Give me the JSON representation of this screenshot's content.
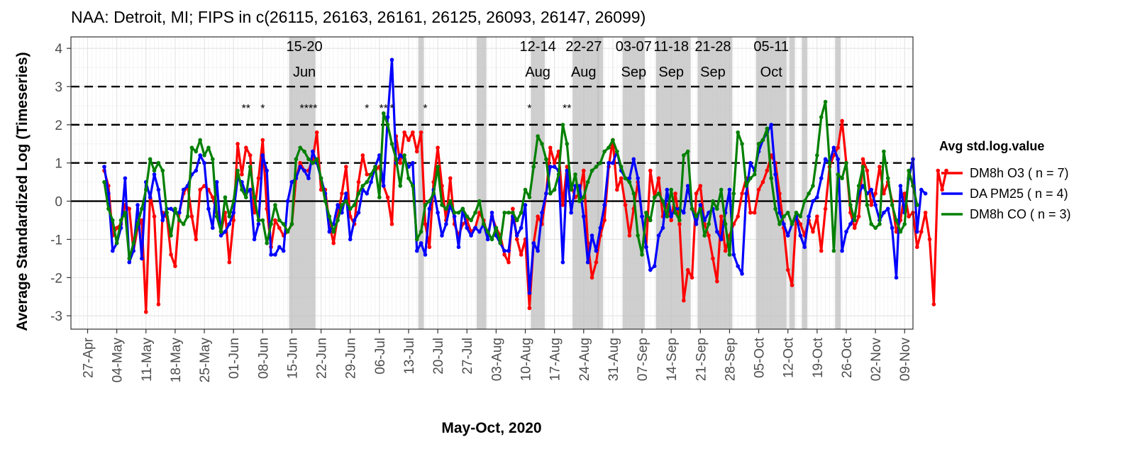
{
  "chart_data": {
    "type": "line",
    "title": "NAA: Detroit, MI; FIPS in c(26115, 26163, 26161, 26125, 26093, 26147, 26099)",
    "xlabel": "May-Oct, 2020",
    "ylabel": "Average Standardized Log (Timeseries)",
    "x_range": [
      "2020-04-23",
      "2020-11-11"
    ],
    "ylim": [
      -3.35,
      4.3
    ],
    "y_ticks": [
      -3,
      -2,
      -1,
      0,
      1,
      2,
      3,
      4
    ],
    "x_ticks": [
      {
        "date": "2020-04-27",
        "label": "27-Apr"
      },
      {
        "date": "2020-05-04",
        "label": "04-May"
      },
      {
        "date": "2020-05-11",
        "label": "11-May"
      },
      {
        "date": "2020-05-18",
        "label": "18-May"
      },
      {
        "date": "2020-05-25",
        "label": "25-May"
      },
      {
        "date": "2020-06-01",
        "label": "01-Jun"
      },
      {
        "date": "2020-06-08",
        "label": "08-Jun"
      },
      {
        "date": "2020-06-15",
        "label": "15-Jun"
      },
      {
        "date": "2020-06-22",
        "label": "22-Jun"
      },
      {
        "date": "2020-06-29",
        "label": "29-Jun"
      },
      {
        "date": "2020-07-06",
        "label": "06-Jul"
      },
      {
        "date": "2020-07-13",
        "label": "13-Jul"
      },
      {
        "date": "2020-07-20",
        "label": "20-Jul"
      },
      {
        "date": "2020-07-27",
        "label": "27-Jul"
      },
      {
        "date": "2020-08-03",
        "label": "03-Aug"
      },
      {
        "date": "2020-08-10",
        "label": "10-Aug"
      },
      {
        "date": "2020-08-17",
        "label": "17-Aug"
      },
      {
        "date": "2020-08-24",
        "label": "24-Aug"
      },
      {
        "date": "2020-08-31",
        "label": "31-Aug"
      },
      {
        "date": "2020-09-07",
        "label": "07-Sep"
      },
      {
        "date": "2020-09-14",
        "label": "14-Sep"
      },
      {
        "date": "2020-09-21",
        "label": "21-Sep"
      },
      {
        "date": "2020-09-28",
        "label": "28-Sep"
      },
      {
        "date": "2020-10-05",
        "label": "05-Oct"
      },
      {
        "date": "2020-10-12",
        "label": "12-Oct"
      },
      {
        "date": "2020-10-19",
        "label": "19-Oct"
      },
      {
        "date": "2020-10-26",
        "label": "26-Oct"
      },
      {
        "date": "2020-11-02",
        "label": "02-Nov"
      },
      {
        "date": "2020-11-09",
        "label": "09-Nov"
      }
    ],
    "reference_lines": [
      {
        "y": 0,
        "style": "solid"
      },
      {
        "y": 1,
        "style": "dashed"
      },
      {
        "y": 2,
        "style": "dashed"
      },
      {
        "y": 3,
        "style": "dashed"
      }
    ],
    "shaded_periods": [
      {
        "start": "2020-06-15",
        "end": "2020-06-20"
      },
      {
        "start": "2020-07-16",
        "end": "2020-07-16"
      },
      {
        "start": "2020-07-30",
        "end": "2020-07-31"
      },
      {
        "start": "2020-08-12",
        "end": "2020-08-14"
      },
      {
        "start": "2020-08-22",
        "end": "2020-08-27"
      },
      {
        "start": "2020-08-28",
        "end": "2020-08-28"
      },
      {
        "start": "2020-09-03",
        "end": "2020-09-07"
      },
      {
        "start": "2020-09-11",
        "end": "2020-09-18"
      },
      {
        "start": "2020-09-21",
        "end": "2020-09-28"
      },
      {
        "start": "2020-10-05",
        "end": "2020-10-11"
      },
      {
        "start": "2020-10-13",
        "end": "2020-10-13"
      },
      {
        "start": "2020-10-16",
        "end": "2020-10-16"
      },
      {
        "start": "2020-10-24",
        "end": "2020-10-24"
      }
    ],
    "period_labels": [
      {
        "date": "2020-06-18",
        "line1": "15-20",
        "line2": "Jun"
      },
      {
        "date": "2020-08-13",
        "line1": "12-14",
        "line2": "Aug"
      },
      {
        "date": "2020-08-24",
        "line1": "22-27",
        "line2": "Aug"
      },
      {
        "date": "2020-09-05",
        "line1": "03-07",
        "line2": "Sep"
      },
      {
        "date": "2020-09-14",
        "line1": "11-18",
        "line2": "Sep"
      },
      {
        "date": "2020-09-24",
        "line1": "21-28",
        "line2": "Sep"
      },
      {
        "date": "2020-10-08",
        "line1": "05-11",
        "line2": "Oct"
      }
    ],
    "star_annotations": [
      {
        "date": "2020-06-04",
        "text": "**",
        "y": 2.5
      },
      {
        "date": "2020-06-08",
        "text": "*",
        "y": 2.5
      },
      {
        "date": "2020-06-19",
        "text": "****",
        "y": 2.5
      },
      {
        "date": "2020-07-03",
        "text": "*",
        "y": 2.5
      },
      {
        "date": "2020-07-07",
        "text": "**",
        "y": 2.5
      },
      {
        "date": "2020-07-09",
        "text": "*",
        "y": 2.5
      },
      {
        "date": "2020-07-17",
        "text": "*",
        "y": 2.5
      },
      {
        "date": "2020-08-11",
        "text": "*",
        "y": 2.5
      },
      {
        "date": "2020-08-20",
        "text": "**",
        "y": 2.5
      }
    ],
    "x_start": "2020-05-01",
    "legend": {
      "title": "Avg std.log.value",
      "position": "right"
    },
    "series": [
      {
        "name": "DM8h O3 ( n = 7)",
        "color": "#ff0000",
        "values": [
          0.8,
          0.4,
          -0.9,
          -0.7,
          -0.6,
          -0.1,
          -0.2,
          -1.3,
          -0.7,
          -0.5,
          -2.9,
          0.2,
          -0.4,
          -2.7,
          -0.3,
          -0.4,
          -1.4,
          -1.7,
          -0.3,
          0.2,
          0.4,
          -0.4,
          -1.0,
          0.3,
          0.4,
          0.3,
          0.1,
          -0.3,
          -0.8,
          -0.3,
          -1.6,
          -0.5,
          1.5,
          0.7,
          1.4,
          1.2,
          -0.3,
          0.6,
          1.6,
          -0.2,
          -1.2,
          -0.5,
          -0.7,
          -0.9,
          -0.8,
          -0.6,
          0.6,
          1.0,
          0.8,
          0.8,
          1.1,
          1.8,
          0.3,
          0.3,
          -0.6,
          -1.1,
          -0.4,
          0.2,
          0.9,
          -0.4,
          -0.6,
          0.5,
          1.2,
          0.7,
          0.7,
          0.8,
          0.9,
          0.4,
          0.1,
          -0.6,
          1.7,
          1.0,
          1.8,
          1.6,
          1.8,
          1.3,
          1.8,
          -0.6,
          -1.2,
          0.5,
          1.4,
          0.4,
          -0.5,
          0.6,
          -0.6,
          -0.9,
          -0.6,
          -0.5,
          -0.8,
          -0.7,
          -0.3,
          -0.5,
          -0.9,
          -0.4,
          -0.7,
          -0.9,
          -1.4,
          -1.6,
          -0.2,
          -1.0,
          -1.4,
          -1.0,
          -2.8,
          -1.1,
          -0.4,
          -0.6,
          0.2,
          1.4,
          1.0,
          1.3,
          -0.1,
          0.9,
          0.4,
          0.1,
          0.2,
          0.8,
          -1.1,
          -2.0,
          -1.6,
          -0.9,
          -0.5,
          0.9,
          1.6,
          0.3,
          0.6,
          -0.1,
          -0.9,
          -0.2,
          0.5,
          -0.4,
          -1.2,
          0.8,
          0.1,
          0.6,
          -0.4,
          -0.1,
          -0.5,
          0.2,
          -0.6,
          -2.6,
          -1.8,
          -2.0,
          0.2,
          0.4,
          -0.6,
          -0.9,
          -1.5,
          -2.1,
          -0.4,
          -1.3,
          -0.9,
          -0.6,
          -0.4,
          0.2,
          0.6,
          -0.3,
          -0.3,
          0.3,
          0.5,
          0.8,
          1.2,
          1.0,
          0.2,
          -0.7,
          -1.8,
          -2.2,
          -0.4,
          -0.6,
          -0.9,
          -0.5,
          -0.8,
          -0.4,
          -1.3,
          -0.2,
          0.9,
          1.2,
          1.4,
          2.1,
          1.0,
          -0.3,
          -0.7,
          -0.4,
          1.1,
          0.8,
          -0.1,
          0.2,
          0.9,
          0.2,
          0.5,
          0.0,
          -0.8,
          -0.5,
          0.2,
          -0.4,
          -0.3,
          -1.2,
          -0.8,
          -0.3,
          -1.0,
          -2.7,
          0.8,
          0.3,
          0.8
        ]
      },
      {
        "name": "DA PM25 ( n = 4)",
        "color": "#0000ff",
        "values": [
          0.9,
          0.2,
          -1.3,
          -1.1,
          -0.7,
          0.6,
          -1.6,
          -1.3,
          -0.1,
          -1.5,
          0.5,
          0.1,
          0.7,
          0.3,
          -0.5,
          -0.2,
          -0.2,
          -0.3,
          -0.3,
          0.3,
          0.4,
          0.7,
          0.8,
          1.2,
          1.0,
          -0.2,
          -0.7,
          0.5,
          -0.9,
          -0.8,
          -0.6,
          -0.3,
          0.6,
          0.5,
          0.2,
          0.3,
          -1.0,
          -0.6,
          1.2,
          0.8,
          -1.4,
          -1.4,
          -1.2,
          -1.3,
          0.0,
          0.5,
          0.6,
          0.9,
          0.8,
          0.6,
          1.3,
          1.0,
          0.6,
          0.2,
          -0.8,
          -0.6,
          -0.1,
          -0.3,
          0.2,
          -1.0,
          -0.5,
          -0.3,
          0.3,
          0.2,
          0.5,
          0.9,
          1.2,
          0.4,
          2.2,
          3.7,
          1.0,
          1.2,
          1.1,
          0.9,
          1.0,
          -1.3,
          -1.1,
          -1.4,
          -0.2,
          0.3,
          -0.3,
          -0.9,
          -0.6,
          -0.1,
          -0.4,
          -1.2,
          -0.2,
          -0.7,
          -0.9,
          -0.7,
          -0.8,
          -0.6,
          -1.0,
          -0.3,
          -0.9,
          -1.1,
          -1.3,
          -1.3,
          -0.4,
          -0.9,
          -0.7,
          -0.1,
          -2.4,
          -1.1,
          -1.3,
          -0.3,
          0.2,
          0.9,
          0.9,
          0.8,
          -1.6,
          0.8,
          -0.3,
          0.4,
          0.4,
          -0.4,
          -1.6,
          -0.9,
          -1.3,
          -0.7,
          -0.1,
          1.0,
          1.0,
          1.3,
          0.8,
          0.6,
          0.6,
          1.1,
          0.6,
          -0.4,
          -1.2,
          -1.8,
          -1.7,
          -0.9,
          -0.7,
          0.3,
          -0.4,
          -0.2,
          -0.2,
          -0.3,
          0.4,
          -0.2,
          -0.6,
          -0.1,
          -0.5,
          -0.3,
          -0.2,
          -0.8,
          -1.0,
          -0.3,
          0.3,
          -1.4,
          -1.7,
          -1.9,
          0.2,
          1.0,
          0.8,
          1.3,
          1.6,
          1.8,
          2.0,
          0.7,
          -0.3,
          -0.6,
          -0.9,
          -0.6,
          -0.4,
          -0.9,
          -1.2,
          -0.4,
          0.0,
          0.1,
          0.6,
          1.1,
          1.0,
          1.4,
          1.1,
          -1.3,
          -0.8,
          -0.6,
          -0.4,
          0.2,
          0.4,
          0.2,
          0.3,
          -0.1,
          -0.5,
          -0.3,
          -0.2,
          -0.7,
          -2.0,
          0.4,
          -0.3,
          0.6,
          1.1,
          -0.8,
          0.3,
          0.2
        ]
      },
      {
        "name": "DM8h CO ( n = 3)",
        "color": "#008000",
        "values": [
          0.5,
          -0.2,
          -0.5,
          -1.1,
          -0.5,
          -0.3,
          -1.5,
          -1.1,
          -0.6,
          -0.2,
          0.3,
          1.1,
          0.8,
          1.0,
          0.8,
          -0.3,
          -0.9,
          -0.2,
          -0.5,
          -0.6,
          -0.4,
          1.4,
          1.3,
          1.6,
          1.2,
          1.4,
          1.1,
          -0.4,
          -0.8,
          0.1,
          -0.4,
          0.0,
          0.8,
          0.3,
          0.1,
          0.9,
          0.1,
          -0.5,
          -0.5,
          -1.1,
          -0.6,
          -0.1,
          -0.5,
          -0.6,
          -0.8,
          -0.6,
          1.1,
          1.4,
          1.3,
          1.1,
          1.0,
          1.1,
          0.6,
          0.0,
          -0.4,
          -0.8,
          -0.5,
          -0.1,
          0.0,
          -0.2,
          -0.1,
          0.2,
          0.4,
          0.5,
          0.7,
          0.9,
          0.1,
          2.3,
          2.0,
          1.5,
          1.1,
          0.4,
          1.2,
          0.6,
          0.4,
          -1.0,
          -0.8,
          -0.1,
          0.0,
          0.2,
          0.9,
          -0.1,
          -0.2,
          0.0,
          -0.3,
          -0.3,
          -0.2,
          -0.4,
          -0.5,
          -0.3,
          0.0,
          -0.6,
          -0.8,
          -1.0,
          -0.7,
          -1.1,
          -0.3,
          -0.3,
          -0.3,
          -0.5,
          -0.3,
          0.3,
          0.1,
          0.9,
          1.7,
          1.5,
          1.1,
          0.2,
          0.3,
          0.7,
          2.0,
          1.5,
          0.3,
          0.7,
          0.0,
          0.1,
          0.5,
          0.8,
          0.9,
          1.0,
          1.3,
          1.4,
          1.6,
          1.3,
          0.9,
          0.6,
          0.5,
          0.2,
          -0.9,
          -1.4,
          -0.3,
          -0.5,
          0.1,
          0.2,
          0.0,
          -0.4,
          0.3,
          -0.3,
          -0.5,
          1.2,
          1.3,
          -0.2,
          -0.4,
          -0.2,
          -0.9,
          -0.6,
          0.0,
          -0.2,
          0.3,
          -0.6,
          -1.4,
          0.2,
          1.8,
          1.5,
          0.4,
          0.6,
          0.7,
          1.5,
          1.6,
          1.9,
          0.6,
          -0.2,
          -0.6,
          -0.4,
          -0.3,
          -0.6,
          -0.3,
          -0.4,
          0.0,
          0.2,
          0.4,
          1.2,
          2.2,
          2.6,
          1.0,
          -1.3,
          0.7,
          0.6,
          1.0,
          -0.1,
          -0.5,
          0.4,
          0.9,
          -0.1,
          -0.6,
          -0.7,
          -0.6,
          1.3,
          0.6,
          -0.1,
          -0.5,
          -0.8,
          -0.6,
          0.8,
          0.4,
          -0.1
        ]
      }
    ]
  }
}
